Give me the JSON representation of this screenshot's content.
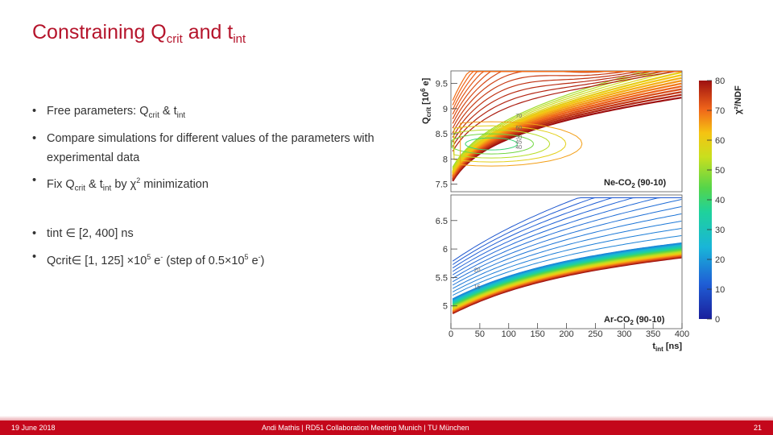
{
  "slide": {
    "title": {
      "text": "Constraining Q",
      "sub1": "crit",
      "mid": " and t",
      "sub2": "int"
    }
  },
  "bullets": [
    {
      "parts": [
        {
          "t": "Free parameters: Q"
        },
        {
          "t": "crit",
          "sub": true
        },
        {
          "t": " & t"
        },
        {
          "t": "int",
          "sub": true
        }
      ]
    },
    {
      "parts": [
        {
          "t": "Compare simulations for different values of the parameters with experimental data"
        }
      ]
    },
    {
      "parts": [
        {
          "t": "Fix Q"
        },
        {
          "t": "crit",
          "sub": true
        },
        {
          "t": " & t"
        },
        {
          "t": "int",
          "sub": true
        },
        {
          "t": " by χ"
        },
        {
          "t": "2",
          "sup": true
        },
        {
          "t": " minimization"
        }
      ]
    },
    {
      "parts": [
        {
          "t": "tint ∈ [2, 400] ns"
        }
      ]
    },
    {
      "parts": [
        {
          "t": "Qcrit∈ [1, 125] ×10"
        },
        {
          "t": "5",
          "sup": true
        },
        {
          "t": " e"
        },
        {
          "t": "-",
          "sup": true
        },
        {
          "t": " (step of 0.5×10"
        },
        {
          "t": "5",
          "sup": true
        },
        {
          "t": " e"
        },
        {
          "t": "-",
          "sup": true
        },
        {
          "t": ")"
        }
      ]
    }
  ],
  "footer": {
    "date": "19 June 2018",
    "center": "Andi Mathis | RD51 Collaboration Meeting Munich | TU München",
    "page": "21"
  },
  "chart_data": {
    "type": "heatmap",
    "x_axis": {
      "label_main": "t",
      "label_sub": "int",
      "label_unit": " [ns]",
      "range": [
        0,
        400
      ],
      "ticks": [
        0,
        50,
        100,
        150,
        200,
        250,
        300,
        350,
        400
      ]
    },
    "y_axis": {
      "label_main": "Q",
      "label_sub": "crit",
      "label_unit": " [10",
      "label_exp": "6",
      "label_tail": " e]"
    },
    "colorbar": {
      "label": "χ²/NDF",
      "range": [
        0,
        80
      ],
      "ticks": [
        0,
        10,
        20,
        30,
        40,
        50,
        60,
        70,
        80
      ]
    },
    "panels": [
      {
        "name": "Ne-CO2 (90-10)",
        "name_main": "Ne-CO",
        "name_sub": "2",
        "name_tail": " (90-10)",
        "yrange": [
          7.35,
          9.75
        ],
        "yticks": [
          7.5,
          8,
          8.5,
          9,
          9.5
        ],
        "contour_labels": [
          {
            "text": "70",
            "x": 112,
            "y": 8.82
          },
          {
            "text": "60",
            "x": 112,
            "y": 8.58
          },
          {
            "text": "50",
            "x": 112,
            "y": 8.4
          },
          {
            "text": "45",
            "x": 112,
            "y": 8.3
          },
          {
            "text": "40",
            "x": 112,
            "y": 8.2
          }
        ]
      },
      {
        "name": "Ar-CO2 (90-10)",
        "name_main": "Ar-CO",
        "name_sub": "2",
        "name_tail": " (90-10)",
        "yrange": [
          4.6,
          6.95
        ],
        "yticks": [
          5,
          5.5,
          6,
          6.5
        ],
        "contour_labels": [
          {
            "text": "20",
            "x": 40,
            "y": 5.6
          },
          {
            "text": "15",
            "x": 40,
            "y": 5.3
          }
        ]
      }
    ]
  },
  "colors": {
    "accent": "#c4071b",
    "title": "#b5142b"
  }
}
